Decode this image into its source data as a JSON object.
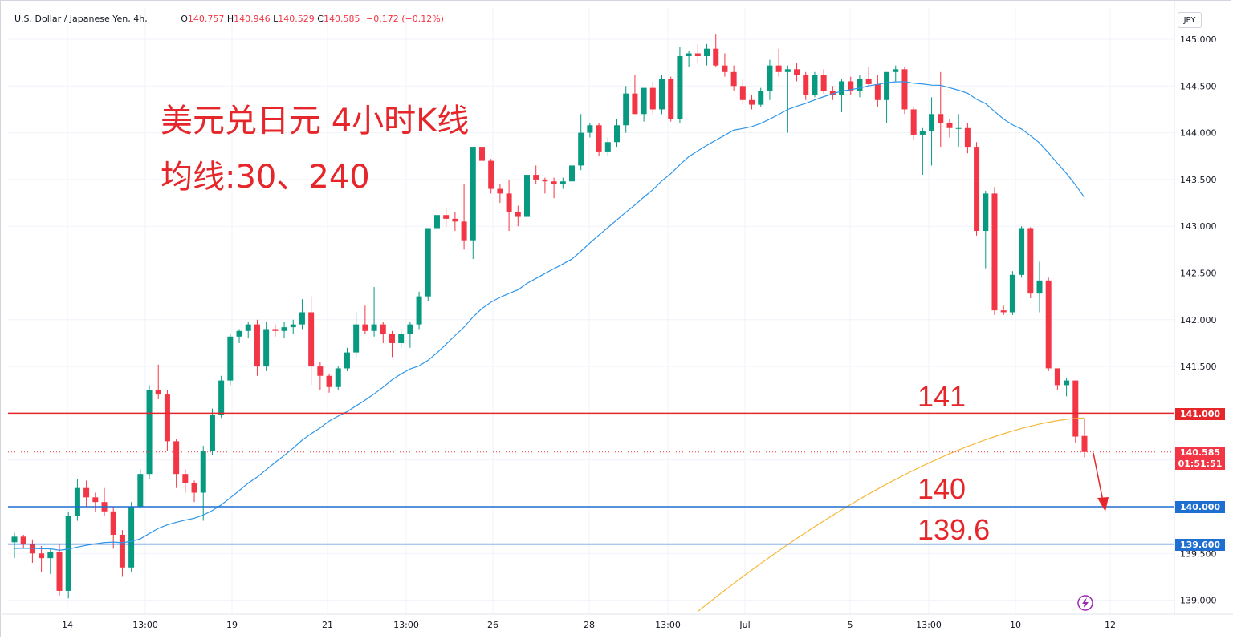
{
  "header": {
    "symbol": "U.S. Dollar / Japanese Yen, 4h,",
    "o_label": "O",
    "o_value": "140.757",
    "h_label": "H",
    "h_value": "140.946",
    "l_label": "L",
    "l_value": "140.529",
    "c_label": "C",
    "c_value": "140.585",
    "change": "−0.172 (−0.12%)"
  },
  "currency_button": "JPY",
  "annotations": {
    "title_line1": "美元兑日元 4小时K线",
    "title_line2": "均线:30、240",
    "level_141": "141",
    "level_140": "140",
    "level_139_6": "139.6"
  },
  "price_tags": {
    "line_141": "141.000",
    "last_price": "140.585",
    "countdown": "01:51:51",
    "line_140": "140.000",
    "line_139_6": "139.600"
  },
  "colors": {
    "up": "#089981",
    "down": "#f23645",
    "ma30": "#2f96ea",
    "ma240": "#f5b93a",
    "line_141": "#e5262b",
    "line_140": "#1f6fd1",
    "line_139_6": "#1f6fd1",
    "annotation": "#e5262b"
  },
  "chart_data": {
    "type": "candlestick",
    "y_axis": {
      "range": [
        138.9,
        145.2
      ],
      "ticks": [
        "145.000",
        "144.500",
        "144.000",
        "143.500",
        "143.000",
        "142.500",
        "142.000",
        "141.500",
        "141.000",
        "140.500",
        "140.000",
        "139.500",
        "139.000"
      ]
    },
    "x_axis": {
      "ticks": [
        "14",
        "13:00",
        "19",
        "21",
        "13:00",
        "26",
        "28",
        "13:00",
        "Jul",
        "5",
        "13:00",
        "10",
        "12"
      ]
    },
    "horizontal_lines": [
      141.0,
      140.0,
      139.6
    ],
    "last_price": 140.585,
    "candles": [
      [
        139.62,
        139.72,
        139.45,
        139.68
      ],
      [
        139.68,
        139.7,
        139.55,
        139.6
      ],
      [
        139.6,
        139.65,
        139.4,
        139.5
      ],
      [
        139.5,
        139.58,
        139.3,
        139.45
      ],
      [
        139.45,
        139.55,
        139.28,
        139.52
      ],
      [
        139.52,
        139.6,
        139.05,
        139.1
      ],
      [
        139.1,
        139.95,
        139.02,
        139.9
      ],
      [
        139.9,
        140.3,
        139.85,
        140.2
      ],
      [
        140.2,
        140.28,
        140.0,
        140.1
      ],
      [
        140.1,
        140.15,
        139.95,
        140.05
      ],
      [
        140.05,
        140.2,
        139.9,
        139.95
      ],
      [
        139.95,
        140.0,
        139.55,
        139.7
      ],
      [
        139.7,
        139.75,
        139.25,
        139.35
      ],
      [
        139.35,
        140.05,
        139.3,
        140.0
      ],
      [
        140.0,
        140.4,
        139.98,
        140.35
      ],
      [
        140.35,
        141.3,
        140.3,
        141.25
      ],
      [
        141.25,
        141.52,
        141.15,
        141.2
      ],
      [
        141.2,
        141.25,
        140.6,
        140.7
      ],
      [
        140.7,
        140.72,
        140.2,
        140.35
      ],
      [
        140.35,
        140.4,
        140.15,
        140.25
      ],
      [
        140.25,
        140.28,
        140.05,
        140.15
      ],
      [
        140.15,
        140.65,
        139.85,
        140.6
      ],
      [
        140.6,
        141.05,
        140.55,
        140.98
      ],
      [
        140.98,
        141.4,
        140.95,
        141.35
      ],
      [
        141.35,
        141.85,
        141.3,
        141.82
      ],
      [
        141.82,
        141.9,
        141.75,
        141.88
      ],
      [
        141.88,
        141.98,
        141.8,
        141.95
      ],
      [
        141.95,
        142.0,
        141.4,
        141.5
      ],
      [
        141.5,
        141.98,
        141.45,
        141.9
      ],
      [
        141.9,
        141.95,
        141.82,
        141.88
      ],
      [
        141.88,
        141.98,
        141.8,
        141.92
      ],
      [
        141.92,
        142.0,
        141.85,
        141.95
      ],
      [
        141.95,
        142.22,
        141.9,
        142.08
      ],
      [
        142.08,
        142.25,
        141.3,
        141.5
      ],
      [
        141.5,
        141.55,
        141.25,
        141.4
      ],
      [
        141.4,
        141.42,
        141.22,
        141.28
      ],
      [
        141.28,
        141.5,
        141.25,
        141.48
      ],
      [
        141.48,
        141.7,
        141.45,
        141.65
      ],
      [
        141.65,
        142.08,
        141.6,
        141.95
      ],
      [
        141.95,
        142.15,
        141.85,
        141.88
      ],
      [
        141.88,
        142.35,
        141.82,
        141.95
      ],
      [
        141.95,
        141.98,
        141.75,
        141.85
      ],
      [
        141.85,
        141.88,
        141.6,
        141.75
      ],
      [
        141.75,
        141.9,
        141.7,
        141.85
      ],
      [
        141.85,
        141.98,
        141.7,
        141.95
      ],
      [
        141.95,
        142.3,
        141.9,
        142.25
      ],
      [
        142.25,
        142.98,
        142.2,
        142.98
      ],
      [
        142.98,
        143.25,
        142.92,
        143.12
      ],
      [
        143.12,
        143.2,
        143.0,
        143.08
      ],
      [
        143.08,
        143.15,
        142.95,
        143.05
      ],
      [
        143.05,
        143.45,
        142.75,
        142.85
      ],
      [
        142.85,
        143.85,
        142.65,
        143.85
      ],
      [
        143.85,
        143.88,
        143.65,
        143.7
      ],
      [
        143.7,
        143.72,
        143.35,
        143.4
      ],
      [
        143.4,
        143.45,
        143.25,
        143.35
      ],
      [
        143.35,
        143.5,
        142.95,
        143.15
      ],
      [
        143.15,
        143.22,
        143.0,
        143.1
      ],
      [
        143.1,
        143.6,
        143.05,
        143.55
      ],
      [
        143.55,
        143.65,
        143.45,
        143.5
      ],
      [
        143.5,
        143.52,
        143.35,
        143.48
      ],
      [
        143.48,
        143.52,
        143.3,
        143.45
      ],
      [
        143.45,
        143.52,
        143.4,
        143.48
      ],
      [
        143.48,
        144.0,
        143.35,
        143.65
      ],
      [
        143.65,
        144.2,
        143.6,
        144.0
      ],
      [
        144.0,
        144.1,
        143.95,
        144.08
      ],
      [
        144.08,
        144.1,
        143.75,
        143.8
      ],
      [
        143.8,
        143.95,
        143.75,
        143.9
      ],
      [
        143.9,
        144.15,
        143.85,
        144.08
      ],
      [
        144.08,
        144.5,
        144.0,
        144.42
      ],
      [
        144.42,
        144.62,
        144.2,
        144.2
      ],
      [
        144.2,
        144.48,
        144.12,
        144.48
      ],
      [
        144.48,
        144.55,
        144.2,
        144.25
      ],
      [
        144.25,
        144.62,
        144.2,
        144.58
      ],
      [
        144.58,
        144.6,
        144.12,
        144.15
      ],
      [
        144.15,
        144.92,
        144.1,
        144.82
      ],
      [
        144.82,
        144.88,
        144.7,
        144.85
      ],
      [
        144.85,
        144.95,
        144.75,
        144.82
      ],
      [
        144.82,
        144.95,
        144.72,
        144.9
      ],
      [
        144.9,
        145.05,
        144.7,
        144.72
      ],
      [
        144.72,
        144.85,
        144.6,
        144.65
      ],
      [
        144.65,
        144.72,
        144.45,
        144.5
      ],
      [
        144.5,
        144.58,
        144.3,
        144.35
      ],
      [
        144.35,
        144.4,
        144.25,
        144.3
      ],
      [
        144.3,
        144.48,
        144.28,
        144.45
      ],
      [
        144.45,
        144.78,
        144.35,
        144.72
      ],
      [
        144.72,
        144.9,
        144.6,
        144.65
      ],
      [
        144.65,
        144.72,
        144.0,
        144.68
      ],
      [
        144.68,
        144.75,
        144.55,
        144.62
      ],
      [
        144.62,
        144.65,
        144.35,
        144.4
      ],
      [
        144.4,
        144.65,
        144.38,
        144.62
      ],
      [
        144.62,
        144.68,
        144.42,
        144.45
      ],
      [
        144.45,
        144.5,
        144.35,
        144.4
      ],
      [
        144.4,
        144.58,
        144.22,
        144.55
      ],
      [
        144.55,
        144.6,
        144.4,
        144.45
      ],
      [
        144.45,
        144.62,
        144.38,
        144.58
      ],
      [
        144.58,
        144.7,
        144.5,
        144.52
      ],
      [
        144.52,
        144.62,
        144.28,
        144.35
      ],
      [
        144.35,
        144.65,
        144.1,
        144.65
      ],
      [
        144.65,
        144.72,
        144.55,
        144.68
      ],
      [
        144.68,
        144.7,
        144.2,
        144.25
      ],
      [
        144.25,
        144.28,
        143.92,
        143.98
      ],
      [
        143.98,
        144.05,
        143.55,
        144.02
      ],
      [
        144.02,
        144.38,
        143.65,
        144.2
      ],
      [
        144.2,
        144.65,
        143.85,
        144.1
      ],
      [
        144.1,
        144.15,
        143.95,
        144.05
      ],
      [
        144.05,
        144.2,
        143.85,
        144.05
      ],
      [
        144.05,
        144.1,
        143.78,
        143.85
      ],
      [
        143.85,
        143.9,
        142.9,
        142.95
      ],
      [
        142.95,
        143.38,
        142.55,
        143.35
      ],
      [
        143.35,
        143.42,
        142.05,
        142.1
      ],
      [
        142.1,
        142.15,
        142.05,
        142.08
      ],
      [
        142.08,
        142.52,
        142.05,
        142.48
      ],
      [
        142.48,
        143.0,
        142.45,
        142.98
      ],
      [
        142.98,
        142.99,
        142.23,
        142.28
      ],
      [
        142.28,
        142.62,
        142.08,
        142.42
      ],
      [
        142.42,
        142.45,
        141.45,
        141.48
      ],
      [
        141.48,
        141.48,
        141.25,
        141.3
      ],
      [
        141.3,
        141.38,
        141.18,
        141.35
      ],
      [
        141.35,
        141.35,
        140.68,
        140.75
      ],
      [
        140.757,
        140.946,
        140.529,
        140.585
      ]
    ]
  }
}
